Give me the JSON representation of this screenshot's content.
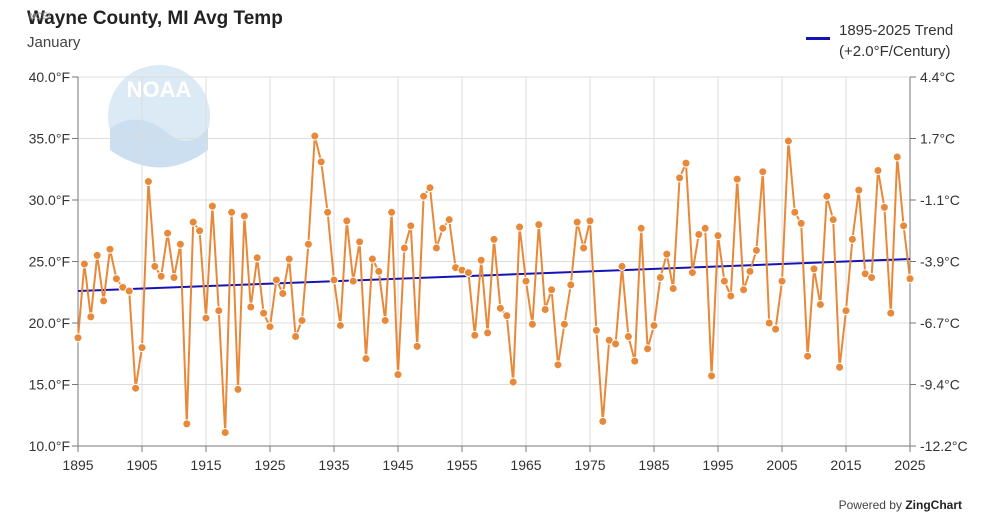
{
  "header": {
    "title": "Wayne County, MI Avg Temp",
    "subtitle": "January",
    "logo_tag": "NCEI"
  },
  "legend": {
    "line1": "1895-2025 Trend",
    "line2": "(+2.0°F/Century)"
  },
  "footer": {
    "powered_by": "Powered by",
    "brand": "ZingChart"
  },
  "colors": {
    "series": "#e8893a",
    "trend": "#1414b4",
    "grid": "#dcdcdc"
  },
  "chart_data": {
    "type": "line",
    "title": "Wayne County, MI Avg Temp",
    "subtitle": "January",
    "x_start": 1895,
    "x_end": 2025,
    "xlim": [
      1895,
      2025
    ],
    "ylim": [
      10,
      40
    ],
    "x_ticks": [
      "1895",
      "1905",
      "1915",
      "1925",
      "1935",
      "1945",
      "1955",
      "1965",
      "1975",
      "1985",
      "1995",
      "2005",
      "2015",
      "2025"
    ],
    "y_ticks_left": [
      "10.0°F",
      "15.0°F",
      "20.0°F",
      "25.0°F",
      "30.0°F",
      "35.0°F",
      "40.0°F"
    ],
    "y_ticks_right": [
      "-12.2°C",
      "-9.4°C",
      "-6.7°C",
      "-3.9°C",
      "-1.1°C",
      "1.7°C",
      "4.4°C"
    ],
    "grid": true,
    "legend_position": "top-right",
    "series": [
      {
        "values": [
          18.8,
          24.8,
          20.5,
          25.5,
          21.8,
          26.0,
          23.6,
          22.9,
          22.6,
          14.7,
          18.0,
          31.5,
          24.6,
          23.8,
          27.3,
          23.7,
          26.4,
          11.8,
          28.2,
          27.5,
          20.4,
          29.5,
          21.0,
          11.1,
          29.0,
          14.6,
          28.7,
          21.3,
          25.3,
          20.8,
          19.7,
          23.5,
          22.4,
          25.2,
          18.9,
          20.2,
          26.4,
          35.2,
          33.1,
          29.0,
          23.5,
          19.8,
          28.3,
          23.4,
          26.6,
          17.1,
          25.2,
          24.2,
          20.2,
          29.0,
          15.8,
          26.1,
          27.9,
          18.1,
          30.3,
          31.0,
          26.1,
          27.7,
          28.4,
          24.5,
          24.3,
          24.1,
          19.0,
          25.1,
          19.2,
          26.8,
          21.2,
          20.6,
          15.2,
          27.8,
          23.4,
          19.9,
          28.0,
          21.1,
          22.7,
          16.6,
          19.9,
          23.1,
          28.2,
          26.1,
          28.3,
          19.4,
          12.0,
          18.6,
          18.3,
          24.6,
          18.9,
          16.9,
          27.7,
          17.9,
          19.8,
          23.7,
          25.6,
          22.8,
          31.8,
          33.0,
          24.1,
          27.2,
          27.7,
          15.7,
          27.1,
          23.4,
          22.2,
          31.7,
          22.7,
          24.2,
          25.9,
          32.3,
          20.0,
          19.5,
          23.4,
          34.8,
          29.0,
          28.1,
          17.3,
          24.4,
          21.5,
          30.3,
          28.4,
          16.4,
          21.0,
          26.8,
          30.8,
          24.0,
          23.7,
          32.4,
          29.4,
          20.8,
          33.5,
          27.9,
          23.6
        ]
      },
      {
        "name": "1895-2025 Trend",
        "values": [
          22.6,
          25.2
        ]
      }
    ]
  }
}
